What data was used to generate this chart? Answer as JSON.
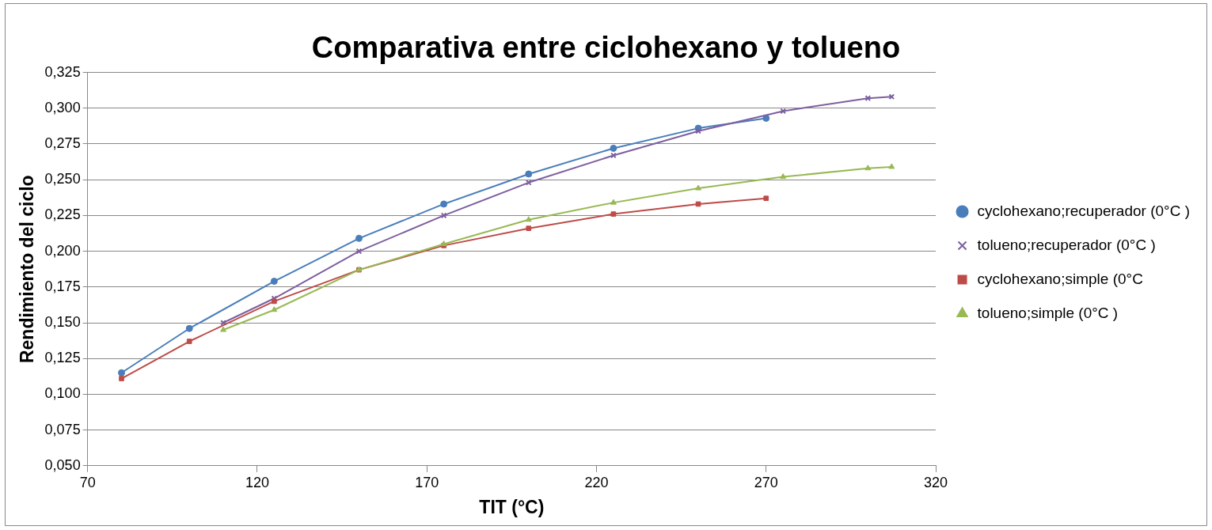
{
  "chart_data": {
    "type": "line",
    "title": "Comparativa entre ciclohexano y tolueno",
    "xlabel": "TIT (°C)",
    "ylabel": "Rendimiento del ciclo",
    "xlim": [
      70,
      320
    ],
    "xticks": [
      70,
      120,
      170,
      220,
      270,
      320
    ],
    "ylim": [
      0.05,
      0.325
    ],
    "yticks": [
      {
        "value": 0.05,
        "label": "0,050"
      },
      {
        "value": 0.075,
        "label": "0,075"
      },
      {
        "value": 0.1,
        "label": "0,100"
      },
      {
        "value": 0.125,
        "label": "0,125"
      },
      {
        "value": 0.15,
        "label": "0,150"
      },
      {
        "value": 0.175,
        "label": "0,175"
      },
      {
        "value": 0.2,
        "label": "0,200"
      },
      {
        "value": 0.225,
        "label": "0,225"
      },
      {
        "value": 0.25,
        "label": "0,250"
      },
      {
        "value": 0.275,
        "label": "0,275"
      },
      {
        "value": 0.3,
        "label": "0,300"
      },
      {
        "value": 0.325,
        "label": "0,325"
      }
    ],
    "grid": "y",
    "legend": "right",
    "series": [
      {
        "name": "cyclohexano;recuperador (0°C )",
        "color": "#4a7ebb",
        "marker": "circle",
        "x": [
          80,
          100,
          125,
          150,
          175,
          200,
          225,
          250,
          270
        ],
        "values": [
          0.115,
          0.146,
          0.179,
          0.209,
          0.233,
          0.254,
          0.272,
          0.286,
          0.293
        ]
      },
      {
        "name": "tolueno;recuperador (0°C )",
        "color": "#7d5fa0",
        "marker": "cross",
        "x": [
          110,
          125,
          150,
          175,
          200,
          225,
          250,
          275,
          300,
          307
        ],
        "values": [
          0.15,
          0.167,
          0.2,
          0.225,
          0.248,
          0.267,
          0.284,
          0.298,
          0.307,
          0.308
        ]
      },
      {
        "name": "cyclohexano;simple (0°C",
        "color": "#be4b48",
        "marker": "square",
        "x": [
          80,
          100,
          125,
          150,
          175,
          200,
          225,
          250,
          270
        ],
        "values": [
          0.111,
          0.137,
          0.165,
          0.187,
          0.204,
          0.216,
          0.226,
          0.233,
          0.237
        ]
      },
      {
        "name": "tolueno;simple (0°C )",
        "color": "#98b954",
        "marker": "triangle",
        "x": [
          110,
          125,
          150,
          175,
          200,
          225,
          250,
          275,
          300,
          307
        ],
        "values": [
          0.145,
          0.159,
          0.187,
          0.205,
          0.222,
          0.234,
          0.244,
          0.252,
          0.258,
          0.259
        ]
      }
    ]
  }
}
